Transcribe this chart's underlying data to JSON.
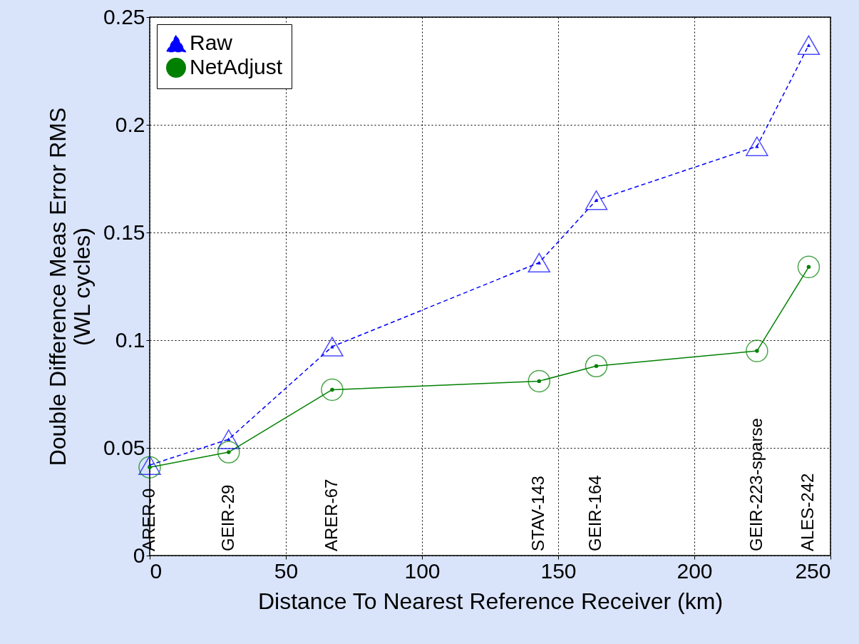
{
  "chart_data": {
    "type": "line",
    "xlabel": "Distance To Nearest Reference Receiver (km)",
    "ylabel": "Double Difference Meas Error RMS\n(WL cycles)",
    "x": [
      0,
      29,
      67,
      143,
      164,
      223,
      242
    ],
    "series": [
      {
        "name": "Raw",
        "color": "#0000ff",
        "marker": "triangle",
        "line_style": "dashed",
        "values": [
          0.042,
          0.054,
          0.097,
          0.136,
          0.165,
          0.19,
          0.237
        ]
      },
      {
        "name": "NetAdjust",
        "color": "#008000",
        "marker": "circle",
        "line_style": "solid",
        "values": [
          0.041,
          0.048,
          0.077,
          0.081,
          0.088,
          0.095,
          0.134
        ]
      }
    ],
    "annotations": [
      "ARER-0",
      "GEIR-29",
      "ARER-67",
      "STAV-143",
      "GEIR-164",
      "GEIR-223-sparse",
      "ALES-242"
    ],
    "xlim": [
      0,
      250
    ],
    "xticks": [
      0,
      50,
      100,
      150,
      200,
      250
    ],
    "ylim": [
      0,
      0.25
    ],
    "yticks": [
      0,
      0.05,
      0.1,
      0.15,
      0.2,
      0.25
    ],
    "grid": true,
    "legend": "top left"
  }
}
